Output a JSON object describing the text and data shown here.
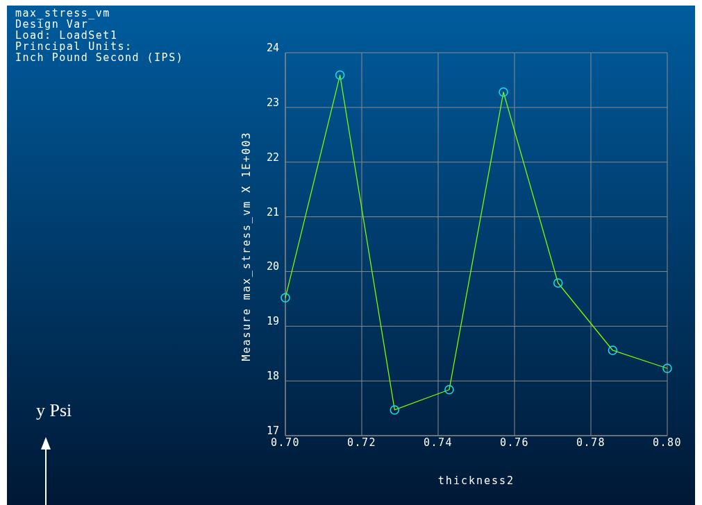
{
  "chart_data": {
    "type": "line",
    "title": "max_stress_vm",
    "annotations": [
      "Design Var",
      "Load: LoadSet1",
      "Principal Units:",
      "Inch Pound Second (IPS)",
      "y  Psi"
    ],
    "xlabel": "thickness2",
    "ylabel": "Measure max_stress_vm X 1E+003",
    "x": [
      0.7,
      0.7143,
      0.7286,
      0.7429,
      0.7571,
      0.7714,
      0.7857,
      0.8
    ],
    "series": [
      {
        "color": "#7cfc00",
        "values": [
          19.52,
          23.59,
          17.47,
          17.84,
          23.28,
          19.79,
          18.56,
          18.23
        ]
      }
    ],
    "marker": "circle",
    "line_style": "solid",
    "grid": true,
    "xlim": [
      0.7,
      0.8
    ],
    "xticks": [
      {
        "value": 0.7,
        "label": "0.70"
      },
      {
        "value": 0.72,
        "label": "0.72"
      },
      {
        "value": 0.74,
        "label": "0.74"
      },
      {
        "value": 0.76,
        "label": "0.76"
      },
      {
        "value": 0.78,
        "label": "0.78"
      },
      {
        "value": 0.8,
        "label": "0.80"
      }
    ],
    "ylim": [
      17,
      24
    ],
    "yticks": [
      17,
      18,
      19,
      20,
      21,
      22,
      23,
      24
    ]
  }
}
